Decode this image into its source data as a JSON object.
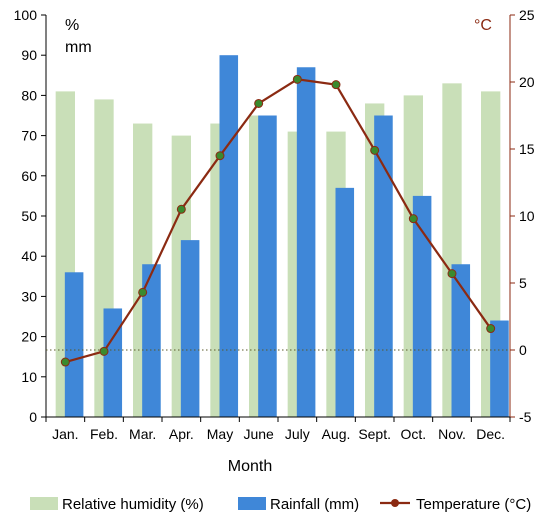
{
  "chart_data": {
    "type": "bar",
    "categories": [
      "Jan.",
      "Feb.",
      "Mar.",
      "Apr.",
      "May",
      "June",
      "July",
      "Aug.",
      "Sept.",
      "Oct.",
      "Nov.",
      "Dec."
    ],
    "xlabel": "Month",
    "left_axis": {
      "unit_line1": "%",
      "unit_line2": "mm",
      "range": [
        0,
        100
      ],
      "ticks": [
        0,
        10,
        20,
        30,
        40,
        50,
        60,
        70,
        80,
        90,
        100
      ]
    },
    "right_axis": {
      "unit": "°C",
      "range": [
        -5,
        25
      ],
      "ticks": [
        -5,
        0,
        5,
        10,
        15,
        20,
        25
      ]
    },
    "series": [
      {
        "name": "Relative humidity (%)",
        "type": "bar",
        "axis": "left",
        "color": "#c9dfb8",
        "values": [
          81,
          79,
          73,
          70,
          73,
          75,
          71,
          71,
          78,
          80,
          83,
          81
        ]
      },
      {
        "name": "Rainfall (mm)",
        "type": "bar",
        "axis": "left",
        "color": "#3f87d8",
        "values": [
          36,
          27,
          38,
          44,
          90,
          75,
          87,
          57,
          75,
          55,
          38,
          24
        ]
      },
      {
        "name": "Temperature (°C)",
        "type": "line",
        "axis": "right",
        "color": "#8b2a12",
        "marker_color": "#3a8a2e",
        "values": [
          -0.9,
          -0.1,
          4.3,
          10.5,
          14.5,
          18.4,
          20.2,
          19.8,
          14.9,
          9.8,
          5.7,
          1.6
        ]
      }
    ],
    "reference_line": {
      "axis": "right",
      "value": 0,
      "style": "dotted"
    },
    "grid": false,
    "legend": {
      "position": "bottom"
    }
  }
}
